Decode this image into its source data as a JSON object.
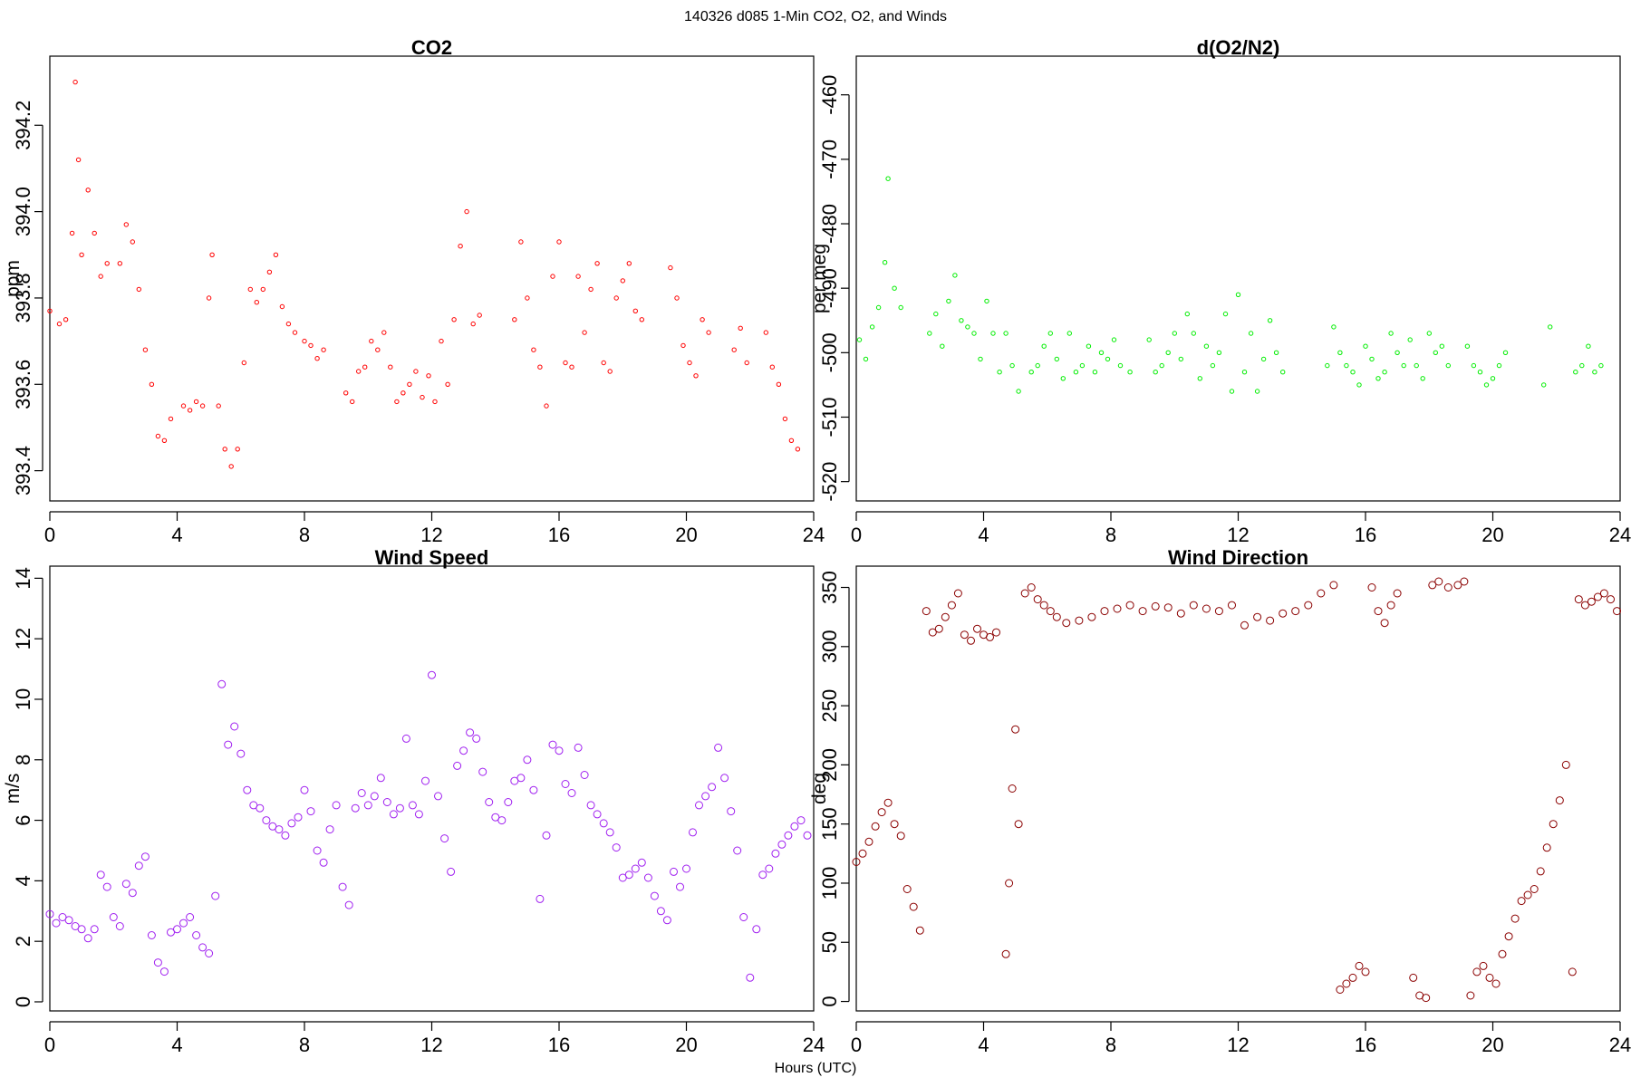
{
  "figure": {
    "title": "140326   d085   1-Min CO2, O2, and Winds",
    "xlabel": "Hours (UTC)"
  },
  "chart_data": [
    {
      "type": "scatter",
      "title": "CO2",
      "xlabel": "",
      "ylabel": "ppm",
      "xlim": [
        0,
        24
      ],
      "ylim": [
        393.33,
        394.36
      ],
      "x_ticks": [
        0,
        4,
        8,
        12,
        16,
        20,
        24
      ],
      "x_tick_labels": [
        "0",
        "4",
        "8",
        "12",
        "16",
        "20",
        "24"
      ],
      "y_ticks": [
        393.4,
        393.6,
        393.8,
        394.0,
        394.2
      ],
      "y_tick_labels": [
        "393.4",
        "393.6",
        "393.8",
        "394.0",
        "394.2"
      ],
      "color": "#ff0000",
      "marker_size": 2.2,
      "series": [
        {
          "x": [
            0.0,
            0.3,
            0.5,
            0.7,
            0.8,
            0.9,
            1.0,
            1.2,
            1.4,
            1.6,
            1.8,
            2.2,
            2.4,
            2.6,
            2.8,
            3.0,
            3.2,
            3.4,
            3.6,
            3.8,
            4.2,
            4.4,
            4.6,
            4.8,
            5.0,
            5.1,
            5.3,
            5.5,
            5.7,
            5.9,
            6.1,
            6.3,
            6.5,
            6.7,
            6.9,
            7.1,
            7.3,
            7.5,
            7.7,
            8.0,
            8.2,
            8.4,
            8.6,
            9.3,
            9.5,
            9.7,
            9.9,
            10.1,
            10.3,
            10.5,
            10.7,
            10.9,
            11.1,
            11.3,
            11.5,
            11.7,
            11.9,
            12.1,
            12.3,
            12.5,
            12.7,
            12.9,
            13.1,
            13.3,
            13.5,
            14.6,
            14.8,
            15.0,
            15.2,
            15.4,
            15.6,
            15.8,
            16.0,
            16.2,
            16.4,
            16.6,
            16.8,
            17.0,
            17.2,
            17.4,
            17.6,
            17.8,
            18.0,
            18.2,
            18.4,
            18.6,
            19.5,
            19.7,
            19.9,
            20.1,
            20.3,
            20.5,
            20.7,
            21.5,
            21.7,
            21.9,
            22.5,
            22.7,
            22.9,
            23.1,
            23.3,
            23.5
          ],
          "y": [
            393.77,
            393.74,
            393.75,
            393.95,
            394.3,
            394.12,
            393.9,
            394.05,
            393.95,
            393.85,
            393.88,
            393.88,
            393.97,
            393.93,
            393.82,
            393.68,
            393.6,
            393.48,
            393.47,
            393.52,
            393.55,
            393.54,
            393.56,
            393.55,
            393.8,
            393.9,
            393.55,
            393.45,
            393.41,
            393.45,
            393.65,
            393.82,
            393.79,
            393.82,
            393.86,
            393.9,
            393.78,
            393.74,
            393.72,
            393.7,
            393.69,
            393.66,
            393.68,
            393.58,
            393.56,
            393.63,
            393.64,
            393.7,
            393.68,
            393.72,
            393.64,
            393.56,
            393.58,
            393.6,
            393.63,
            393.57,
            393.62,
            393.56,
            393.7,
            393.6,
            393.75,
            393.92,
            394.0,
            393.74,
            393.76,
            393.75,
            393.93,
            393.8,
            393.68,
            393.64,
            393.55,
            393.85,
            393.93,
            393.65,
            393.64,
            393.85,
            393.72,
            393.82,
            393.88,
            393.65,
            393.63,
            393.8,
            393.84,
            393.88,
            393.77,
            393.75,
            393.87,
            393.8,
            393.69,
            393.65,
            393.62,
            393.75,
            393.72,
            393.68,
            393.73,
            393.65,
            393.72,
            393.64,
            393.6,
            393.52,
            393.47,
            393.45
          ]
        }
      ]
    },
    {
      "type": "scatter",
      "title": "d(O2/N2)",
      "xlabel": "",
      "ylabel": "per meg",
      "xlim": [
        0,
        24
      ],
      "ylim": [
        -523,
        -454
      ],
      "x_ticks": [
        0,
        4,
        8,
        12,
        16,
        20,
        24
      ],
      "x_tick_labels": [
        "0",
        "4",
        "8",
        "12",
        "16",
        "20",
        "24"
      ],
      "y_ticks": [
        -520,
        -510,
        -500,
        -490,
        -480,
        -470,
        -460
      ],
      "y_tick_labels": [
        "-520",
        "-510",
        "-500",
        "-490",
        "-480",
        "-470",
        "-460"
      ],
      "color": "#00ee00",
      "marker_size": 2.2,
      "series": [
        {
          "x": [
            0.1,
            0.3,
            0.5,
            0.7,
            0.9,
            1.0,
            1.2,
            1.4,
            2.3,
            2.5,
            2.7,
            2.9,
            3.1,
            3.3,
            3.5,
            3.7,
            3.9,
            4.1,
            4.3,
            4.5,
            4.7,
            4.9,
            5.1,
            5.5,
            5.7,
            5.9,
            6.1,
            6.3,
            6.5,
            6.7,
            6.9,
            7.1,
            7.3,
            7.5,
            7.7,
            7.9,
            8.1,
            8.3,
            8.6,
            9.2,
            9.4,
            9.6,
            9.8,
            10.0,
            10.2,
            10.4,
            10.6,
            10.8,
            11.0,
            11.2,
            11.4,
            11.6,
            11.8,
            12.0,
            12.2,
            12.4,
            12.6,
            12.8,
            13.0,
            13.2,
            13.4,
            14.8,
            15.0,
            15.2,
            15.4,
            15.6,
            15.8,
            16.0,
            16.2,
            16.4,
            16.6,
            16.8,
            17.0,
            17.2,
            17.4,
            17.6,
            17.8,
            18.0,
            18.2,
            18.4,
            18.6,
            19.2,
            19.4,
            19.6,
            19.8,
            20.0,
            20.2,
            20.4,
            21.6,
            21.8,
            22.6,
            22.8,
            23.0,
            23.2,
            23.4
          ],
          "y": [
            -498,
            -501,
            -496,
            -493,
            -486,
            -473,
            -490,
            -493,
            -497,
            -494,
            -499,
            -492,
            -488,
            -495,
            -496,
            -497,
            -501,
            -492,
            -497,
            -503,
            -497,
            -502,
            -506,
            -503,
            -502,
            -499,
            -497,
            -501,
            -504,
            -497,
            -503,
            -502,
            -499,
            -503,
            -500,
            -501,
            -498,
            -502,
            -503,
            -498,
            -503,
            -502,
            -500,
            -497,
            -501,
            -494,
            -497,
            -504,
            -499,
            -502,
            -500,
            -494,
            -506,
            -491,
            -503,
            -497,
            -506,
            -501,
            -495,
            -500,
            -503,
            -502,
            -496,
            -500,
            -502,
            -503,
            -505,
            -499,
            -501,
            -504,
            -503,
            -497,
            -500,
            -502,
            -498,
            -502,
            -504,
            -497,
            -500,
            -499,
            -502,
            -499,
            -502,
            -503,
            -505,
            -504,
            -502,
            -500,
            -505,
            -496,
            -503,
            -502,
            -499,
            -503,
            -502
          ]
        }
      ]
    },
    {
      "type": "scatter",
      "title": "Wind Speed",
      "xlabel": "",
      "ylabel": "m/s",
      "xlim": [
        0,
        24
      ],
      "ylim": [
        -0.3,
        14.4
      ],
      "x_ticks": [
        0,
        4,
        8,
        12,
        16,
        20,
        24
      ],
      "x_tick_labels": [
        "0",
        "4",
        "8",
        "12",
        "16",
        "20",
        "24"
      ],
      "y_ticks": [
        0,
        2,
        4,
        6,
        8,
        10,
        12,
        14
      ],
      "y_tick_labels": [
        "0",
        "2",
        "4",
        "6",
        "8",
        "10",
        "12",
        "14"
      ],
      "color": "#a020f0",
      "marker_size": 4.0,
      "series": [
        {
          "x": [
            0.0,
            0.2,
            0.4,
            0.6,
            0.8,
            1.0,
            1.2,
            1.4,
            1.6,
            1.8,
            2.0,
            2.2,
            2.4,
            2.6,
            2.8,
            3.0,
            3.2,
            3.4,
            3.6,
            3.8,
            4.0,
            4.2,
            4.4,
            4.6,
            4.8,
            5.0,
            5.2,
            5.4,
            5.6,
            5.8,
            6.0,
            6.2,
            6.4,
            6.6,
            6.8,
            7.0,
            7.2,
            7.4,
            7.6,
            7.8,
            8.0,
            8.2,
            8.4,
            8.6,
            8.8,
            9.0,
            9.2,
            9.4,
            9.6,
            9.8,
            10.0,
            10.2,
            10.4,
            10.6,
            10.8,
            11.0,
            11.2,
            11.4,
            11.6,
            11.8,
            12.0,
            12.2,
            12.4,
            12.6,
            12.8,
            13.0,
            13.2,
            13.4,
            13.6,
            13.8,
            14.0,
            14.2,
            14.4,
            14.6,
            14.8,
            15.0,
            15.2,
            15.4,
            15.6,
            15.8,
            16.0,
            16.2,
            16.4,
            16.6,
            16.8,
            17.0,
            17.2,
            17.4,
            17.6,
            17.8,
            18.0,
            18.2,
            18.4,
            18.6,
            18.8,
            19.0,
            19.2,
            19.4,
            19.6,
            19.8,
            20.0,
            20.2,
            20.4,
            20.6,
            20.8,
            21.0,
            21.2,
            21.4,
            21.6,
            21.8,
            22.0,
            22.2,
            22.4,
            22.6,
            22.8,
            23.0,
            23.2,
            23.4,
            23.6,
            23.8
          ],
          "y": [
            2.9,
            2.6,
            2.8,
            2.7,
            2.5,
            2.4,
            2.1,
            2.4,
            4.2,
            3.8,
            2.8,
            2.5,
            3.9,
            3.6,
            4.5,
            4.8,
            2.2,
            1.3,
            1.0,
            2.3,
            2.4,
            2.6,
            2.8,
            2.2,
            1.8,
            1.6,
            3.5,
            10.5,
            8.5,
            9.1,
            8.2,
            7.0,
            6.5,
            6.4,
            6.0,
            5.8,
            5.7,
            5.5,
            5.9,
            6.1,
            7.0,
            6.3,
            5.0,
            4.6,
            5.7,
            6.5,
            3.8,
            3.2,
            6.4,
            6.9,
            6.5,
            6.8,
            7.4,
            6.6,
            6.2,
            6.4,
            8.7,
            6.5,
            6.2,
            7.3,
            10.8,
            6.8,
            5.4,
            4.3,
            7.8,
            8.3,
            8.9,
            8.7,
            7.6,
            6.6,
            6.1,
            6.0,
            6.6,
            7.3,
            7.4,
            8.0,
            7.0,
            3.4,
            5.5,
            8.5,
            8.3,
            7.2,
            6.9,
            8.4,
            7.5,
            6.5,
            6.2,
            5.9,
            5.6,
            5.1,
            4.1,
            4.2,
            4.4,
            4.6,
            4.1,
            3.5,
            3.0,
            2.7,
            4.3,
            3.8,
            4.4,
            5.6,
            6.5,
            6.8,
            7.1,
            8.4,
            7.4,
            6.3,
            5.0,
            2.8,
            0.8,
            2.4,
            4.2,
            4.4,
            4.9,
            5.2,
            5.5,
            5.8,
            6.0,
            5.5
          ]
        }
      ]
    },
    {
      "type": "scatter",
      "title": "Wind Direction",
      "xlabel": "",
      "ylabel": "deg",
      "xlim": [
        0,
        24
      ],
      "ylim": [
        -8,
        368
      ],
      "x_ticks": [
        0,
        4,
        8,
        12,
        16,
        20,
        24
      ],
      "x_tick_labels": [
        "0",
        "4",
        "8",
        "12",
        "16",
        "20",
        "24"
      ],
      "y_ticks": [
        0,
        50,
        100,
        150,
        200,
        250,
        300,
        350
      ],
      "y_tick_labels": [
        "0",
        "50",
        "100",
        "150",
        "200",
        "250",
        "300",
        "350"
      ],
      "color": "#8b0000",
      "marker_size": 4.0,
      "series": [
        {
          "x": [
            0.0,
            0.2,
            0.4,
            0.6,
            0.8,
            1.0,
            1.2,
            1.4,
            1.6,
            1.8,
            2.0,
            2.2,
            2.4,
            2.6,
            2.8,
            3.0,
            3.2,
            3.4,
            3.6,
            3.8,
            4.0,
            4.2,
            4.4,
            4.7,
            4.8,
            4.9,
            5.0,
            5.1,
            5.3,
            5.5,
            5.7,
            5.9,
            6.1,
            6.3,
            6.6,
            7.0,
            7.4,
            7.8,
            8.2,
            8.6,
            9.0,
            9.4,
            9.8,
            10.2,
            10.6,
            11.0,
            11.4,
            11.8,
            12.2,
            12.6,
            13.0,
            13.4,
            13.8,
            14.2,
            14.6,
            15.0,
            15.2,
            15.4,
            15.6,
            15.8,
            16.0,
            16.2,
            16.4,
            16.6,
            16.8,
            17.0,
            17.5,
            17.7,
            17.9,
            18.1,
            18.3,
            18.6,
            18.9,
            19.1,
            19.3,
            19.5,
            19.7,
            19.9,
            20.1,
            20.3,
            20.5,
            20.7,
            20.9,
            21.1,
            21.3,
            21.5,
            21.7,
            21.9,
            22.1,
            22.3,
            22.5,
            22.7,
            22.9,
            23.1,
            23.3,
            23.5,
            23.7,
            23.9
          ],
          "y": [
            118,
            125,
            135,
            148,
            160,
            168,
            150,
            140,
            95,
            80,
            60,
            330,
            312,
            315,
            325,
            335,
            345,
            310,
            305,
            315,
            310,
            308,
            312,
            40,
            100,
            180,
            230,
            150,
            345,
            350,
            340,
            335,
            330,
            325,
            320,
            322,
            325,
            330,
            332,
            335,
            330,
            334,
            333,
            328,
            335,
            332,
            330,
            335,
            318,
            325,
            322,
            328,
            330,
            335,
            345,
            352,
            10,
            15,
            20,
            30,
            25,
            350,
            330,
            320,
            335,
            345,
            20,
            5,
            3,
            352,
            355,
            350,
            352,
            355,
            5,
            25,
            30,
            20,
            15,
            40,
            55,
            70,
            85,
            90,
            95,
            110,
            130,
            150,
            170,
            200,
            25,
            340,
            335,
            338,
            342,
            345,
            340,
            330
          ]
        }
      ]
    }
  ]
}
